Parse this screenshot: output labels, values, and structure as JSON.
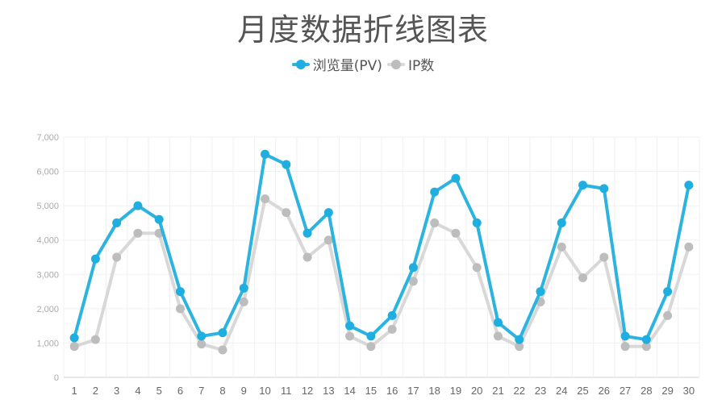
{
  "title": "月度数据折线图表",
  "legend": [
    {
      "label": "浏览量(PV)",
      "color": "#1eaee0",
      "line_color": "#2cb3e0"
    },
    {
      "label": "IP数",
      "color": "#bdbdbd",
      "line_color": "#d8d8d8"
    }
  ],
  "chart_data": {
    "type": "line",
    "title": "月度数据折线图表",
    "xlabel": "",
    "ylabel": "",
    "x": [
      1,
      2,
      3,
      4,
      5,
      6,
      7,
      8,
      9,
      10,
      11,
      12,
      13,
      14,
      15,
      16,
      17,
      18,
      19,
      20,
      21,
      22,
      23,
      24,
      25,
      26,
      27,
      28,
      29,
      30
    ],
    "series": [
      {
        "name": "浏览量(PV)",
        "color": "#1eaee0",
        "values": [
          1150,
          3450,
          4500,
          5000,
          4600,
          2500,
          1200,
          1300,
          2600,
          6500,
          6200,
          4200,
          4800,
          1500,
          1200,
          1800,
          3200,
          5400,
          5800,
          4500,
          1600,
          1100,
          2500,
          4500,
          5600,
          5500,
          1200,
          1100,
          2500,
          5600
        ]
      },
      {
        "name": "IP数",
        "color": "#bdbdbd",
        "values": [
          900,
          1100,
          3500,
          4200,
          4200,
          2000,
          970,
          800,
          2200,
          5200,
          4800,
          3500,
          4000,
          1200,
          900,
          1400,
          2800,
          4500,
          4200,
          3200,
          1200,
          900,
          2200,
          3800,
          2900,
          3500,
          900,
          900,
          1800,
          3800
        ]
      }
    ],
    "ylim": [
      0,
      7000
    ],
    "y_ticks": [
      "0",
      "1,000",
      "2,000",
      "3,000",
      "4,000",
      "5,000",
      "6,000",
      "7,000"
    ],
    "y_tick_values": [
      0,
      1000,
      2000,
      3000,
      4000,
      5000,
      6000,
      7000
    ],
    "grid": true,
    "legend_position": "top"
  }
}
